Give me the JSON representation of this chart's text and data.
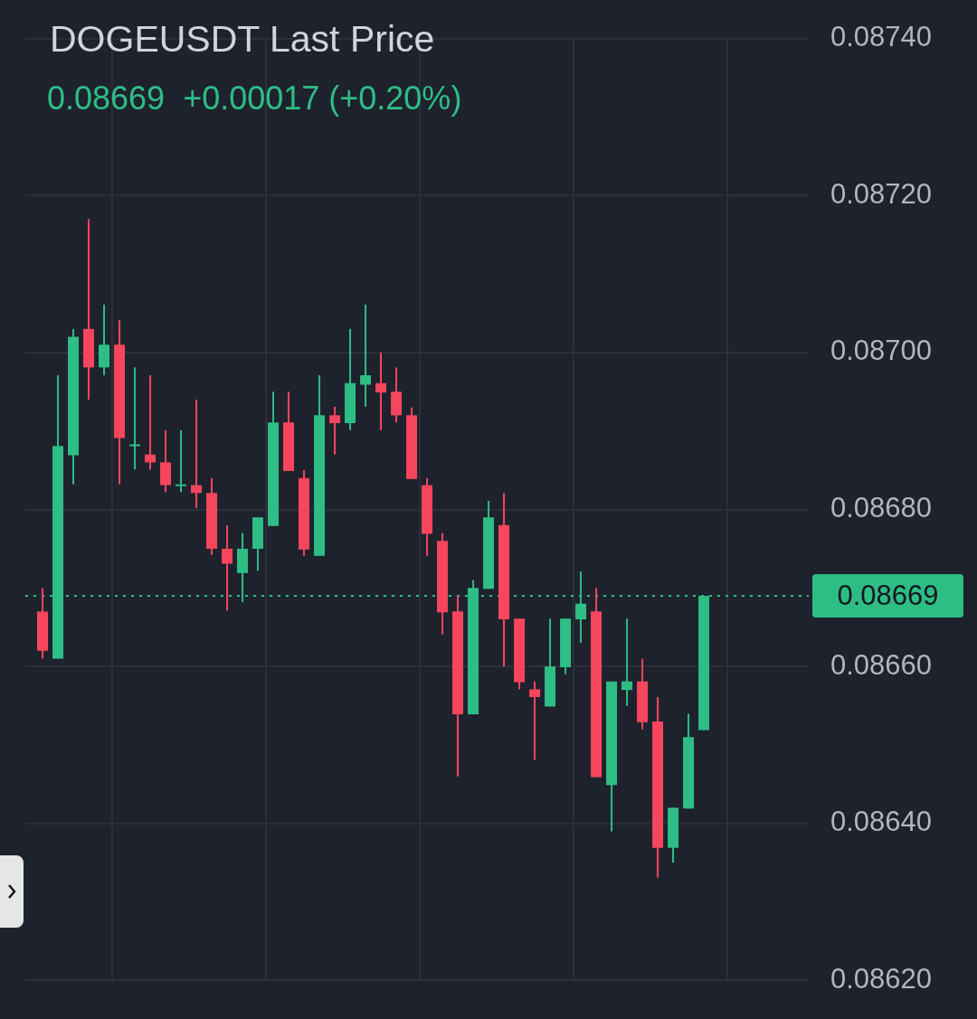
{
  "chart_data": {
    "type": "candlestick",
    "title": "DOGEUSDT Last Price",
    "subtitle": "0.08669  +0.00017 (+0.20%)",
    "categories": [
      null,
      null,
      null,
      null,
      null,
      null,
      null,
      null,
      null,
      null,
      null,
      null,
      null,
      null,
      null,
      null,
      null,
      null,
      null,
      null,
      null,
      null,
      null,
      null,
      null,
      null,
      null,
      null,
      null,
      null,
      null,
      null,
      null,
      null,
      null,
      null,
      null,
      null,
      null,
      null,
      null,
      null,
      null,
      null
    ],
    "ohlc": [
      [
        0.08667,
        0.0867,
        0.08661,
        0.08662
      ],
      [
        0.08661,
        0.086971,
        0.08661,
        0.086881
      ],
      [
        0.086869,
        0.08703,
        0.086832,
        0.08702
      ],
      [
        0.08703,
        0.08717,
        0.08694,
        0.086981
      ],
      [
        0.086981,
        0.087061,
        0.086971,
        0.08701
      ],
      [
        0.08701,
        0.087041,
        0.086832,
        0.086891
      ],
      [
        0.086881,
        0.086981,
        0.086851,
        0.086883
      ],
      [
        0.08687,
        0.086971,
        0.086851,
        0.08686
      ],
      [
        0.08686,
        0.086901,
        0.086822,
        0.086831
      ],
      [
        0.08683,
        0.086901,
        0.086822,
        0.086832
      ],
      [
        0.086831,
        0.08694,
        0.086802,
        0.086821
      ],
      [
        0.086821,
        0.08684,
        0.086742,
        0.08675
      ],
      [
        0.08675,
        0.08678,
        0.086671,
        0.086731
      ],
      [
        0.086719,
        0.08677,
        0.086682,
        0.08675
      ],
      [
        0.08675,
        0.08679,
        0.086722,
        0.08679
      ],
      [
        0.086779,
        0.08695,
        0.086779,
        0.086911
      ],
      [
        0.086911,
        0.08695,
        0.086849,
        0.086849
      ],
      [
        0.08684,
        0.08685,
        0.086741,
        0.086749
      ],
      [
        0.086741,
        0.086971,
        0.086741,
        0.08692
      ],
      [
        0.08692,
        0.086931,
        0.08687,
        0.08691
      ],
      [
        0.08691,
        0.08703,
        0.086901,
        0.086961
      ],
      [
        0.086959,
        0.087061,
        0.086931,
        0.086971
      ],
      [
        0.086961,
        0.087,
        0.086901,
        0.086949
      ],
      [
        0.08695,
        0.086981,
        0.086911,
        0.08692
      ],
      [
        0.08692,
        0.08693,
        0.086839,
        0.086839
      ],
      [
        0.086831,
        0.08684,
        0.086741,
        0.086769
      ],
      [
        0.08676,
        0.08677,
        0.086641,
        0.086669
      ],
      [
        0.08667,
        0.08669,
        0.08646,
        0.086539
      ],
      [
        0.086539,
        0.08671,
        0.086539,
        0.0867
      ],
      [
        0.086699,
        0.086811,
        0.086699,
        0.08679
      ],
      [
        0.08678,
        0.086821,
        0.0866,
        0.08666
      ],
      [
        0.086661,
        0.086661,
        0.086571,
        0.08658
      ],
      [
        0.086571,
        0.086581,
        0.086481,
        0.086561
      ],
      [
        0.086549,
        0.086661,
        0.086549,
        0.0866
      ],
      [
        0.086599,
        0.086661,
        0.08659,
        0.086661
      ],
      [
        0.08666,
        0.086721,
        0.08663,
        0.08668
      ],
      [
        0.08667,
        0.0867,
        0.086459,
        0.086459
      ],
      [
        0.086449,
        0.086581,
        0.08639,
        0.086581
      ],
      [
        0.08657,
        0.086661,
        0.08655,
        0.086581
      ],
      [
        0.086581,
        0.08661,
        0.08652,
        0.086529
      ],
      [
        0.08653,
        0.086561,
        0.086331,
        0.086369
      ],
      [
        0.086369,
        0.08642,
        0.08635,
        0.08642
      ],
      [
        0.086419,
        0.08654,
        0.086419,
        0.08651
      ],
      [
        0.086519,
        0.08669,
        0.086519,
        0.08669
      ]
    ],
    "colors": [
      "#f6465d",
      "#2ebd85",
      "#2ebd85",
      "#f6465d",
      "#2ebd85",
      "#f6465d",
      "#2ebd85",
      "#f6465d",
      "#f6465d",
      "#2ebd85",
      "#f6465d",
      "#f6465d",
      "#f6465d",
      "#2ebd85",
      "#2ebd85",
      "#2ebd85",
      "#f6465d",
      "#f6465d",
      "#2ebd85",
      "#f6465d",
      "#2ebd85",
      "#2ebd85",
      "#f6465d",
      "#f6465d",
      "#f6465d",
      "#f6465d",
      "#f6465d",
      "#f6465d",
      "#2ebd85",
      "#2ebd85",
      "#f6465d",
      "#f6465d",
      "#f6465d",
      "#2ebd85",
      "#2ebd85",
      "#2ebd85",
      "#f6465d",
      "#2ebd85",
      "#2ebd85",
      "#f6465d",
      "#f6465d",
      "#2ebd85",
      "#2ebd85",
      "#2ebd85"
    ],
    "ylim": [
      0.0862,
      0.0874
    ],
    "yticks": [
      {
        "value": 0.0862,
        "label": "0.08620"
      },
      {
        "value": 0.0864,
        "label": "0.08640"
      },
      {
        "value": 0.0866,
        "label": "0.08660"
      },
      {
        "value": 0.0868,
        "label": "0.08680"
      },
      {
        "value": 0.087,
        "label": "0.08700"
      },
      {
        "value": 0.0872,
        "label": "0.08720"
      },
      {
        "value": 0.0874,
        "label": "0.08740"
      }
    ],
    "ref_lines": [
      {
        "axis": "y",
        "value": 0.08669,
        "label": "0.08669",
        "color": "#2ebd85",
        "line_style": "dotted"
      }
    ],
    "grid": true,
    "tick_labels": "y"
  }
}
